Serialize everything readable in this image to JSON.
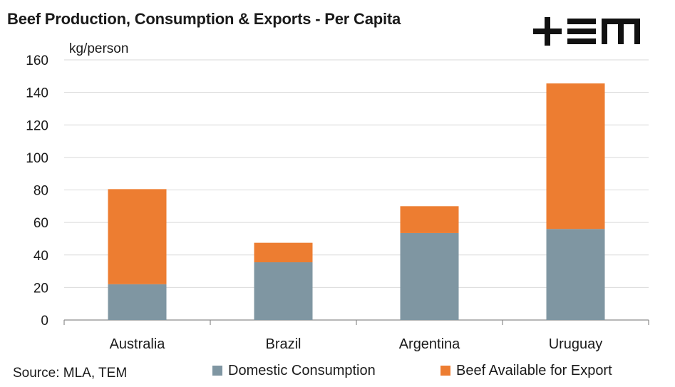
{
  "header": {
    "title": "Beef Production, Consumption & Exports - Per Capita",
    "unit_label": "kg/person"
  },
  "footer": {
    "source": "Source: MLA, TEM"
  },
  "colors": {
    "domestic": "#7f96a2",
    "export": "#ed7d31",
    "grid": "#d9d9d9",
    "axis": "#8c8c8c",
    "logo": "#111111"
  },
  "chart_data": {
    "type": "bar",
    "stacked": true,
    "title": "Beef Production, Consumption & Exports - Per Capita",
    "ylabel": "kg/person",
    "xlabel": "",
    "ylim": [
      0,
      160
    ],
    "yticks": [
      0,
      20,
      40,
      60,
      80,
      100,
      120,
      140,
      160
    ],
    "grid": true,
    "legend_position": "bottom",
    "categories": [
      "Australia",
      "Brazil",
      "Argentina",
      "Uruguay"
    ],
    "series": [
      {
        "name": "Domestic Consumption",
        "color": "#7f96a2",
        "values": [
          22,
          35.5,
          53.5,
          56
        ]
      },
      {
        "name": "Beef Available for Export",
        "color": "#ed7d31",
        "values": [
          58.5,
          12,
          16.5,
          89.5
        ]
      }
    ]
  }
}
